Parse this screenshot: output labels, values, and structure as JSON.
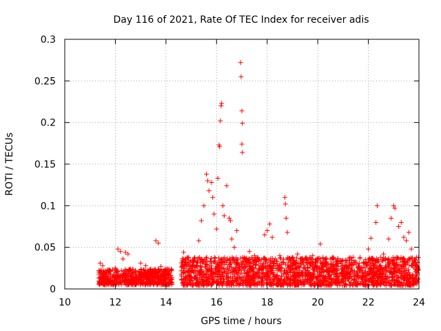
{
  "chart_data": {
    "type": "scatter",
    "title": "Day 116 of 2021, Rate Of TEC Index for receiver adis",
    "xlabel": "GPS time / hours",
    "ylabel": "ROTI / TECUs",
    "xlim": [
      10,
      24
    ],
    "ylim": [
      0,
      0.3
    ],
    "x_ticks": [
      10,
      12,
      14,
      16,
      18,
      20,
      22,
      24
    ],
    "x_tick_labels": [
      "10",
      "12",
      "14",
      "16",
      "18",
      "20",
      "22",
      "24"
    ],
    "y_ticks": [
      0,
      0.05,
      0.1,
      0.15,
      0.2,
      0.25,
      0.3
    ],
    "y_tick_labels": [
      "0",
      "0.05",
      "0.1",
      "0.15",
      "0.2",
      "0.25",
      "0.3"
    ],
    "grid": true,
    "marker": "+",
    "marker_color": "#ff0000",
    "series": [
      {
        "name": "ROTI",
        "points": [
          [
            11.4,
            0.031
          ],
          [
            11.5,
            0.028
          ],
          [
            11.6,
            0.022
          ],
          [
            11.8,
            0.018
          ],
          [
            12.0,
            0.025
          ],
          [
            12.1,
            0.048
          ],
          [
            12.2,
            0.045
          ],
          [
            12.3,
            0.036
          ],
          [
            12.4,
            0.044
          ],
          [
            12.5,
            0.042
          ],
          [
            12.6,
            0.024
          ],
          [
            12.8,
            0.022
          ],
          [
            13.0,
            0.031
          ],
          [
            13.2,
            0.028
          ],
          [
            13.4,
            0.024
          ],
          [
            13.6,
            0.058
          ],
          [
            13.7,
            0.055
          ],
          [
            13.8,
            0.027
          ],
          [
            14.0,
            0.024
          ],
          [
            14.2,
            0.022
          ],
          [
            14.7,
            0.044
          ],
          [
            14.9,
            0.038
          ],
          [
            15.1,
            0.035
          ],
          [
            15.3,
            0.058
          ],
          [
            15.4,
            0.082
          ],
          [
            15.5,
            0.1
          ],
          [
            15.6,
            0.138
          ],
          [
            15.65,
            0.13
          ],
          [
            15.7,
            0.118
          ],
          [
            15.8,
            0.128
          ],
          [
            15.85,
            0.11
          ],
          [
            15.9,
            0.09
          ],
          [
            16.0,
            0.072
          ],
          [
            16.05,
            0.133
          ],
          [
            16.1,
            0.173
          ],
          [
            16.12,
            0.171
          ],
          [
            16.15,
            0.202
          ],
          [
            16.18,
            0.22
          ],
          [
            16.2,
            0.223
          ],
          [
            16.25,
            0.1
          ],
          [
            16.3,
            0.088
          ],
          [
            16.4,
            0.124
          ],
          [
            16.5,
            0.085
          ],
          [
            16.55,
            0.082
          ],
          [
            16.6,
            0.06
          ],
          [
            16.7,
            0.05
          ],
          [
            16.8,
            0.07
          ],
          [
            16.95,
            0.272
          ],
          [
            16.97,
            0.255
          ],
          [
            17.0,
            0.214
          ],
          [
            17.02,
            0.199
          ],
          [
            17.0,
            0.174
          ],
          [
            17.02,
            0.164
          ],
          [
            17.3,
            0.045
          ],
          [
            17.5,
            0.04
          ],
          [
            17.7,
            0.035
          ],
          [
            17.9,
            0.065
          ],
          [
            18.0,
            0.07
          ],
          [
            18.1,
            0.078
          ],
          [
            18.2,
            0.062
          ],
          [
            18.5,
            0.04
          ],
          [
            18.7,
            0.11
          ],
          [
            18.72,
            0.102
          ],
          [
            18.75,
            0.085
          ],
          [
            18.8,
            0.068
          ],
          [
            19.0,
            0.038
          ],
          [
            19.2,
            0.042
          ],
          [
            19.5,
            0.035
          ],
          [
            19.8,
            0.04
          ],
          [
            20.1,
            0.054
          ],
          [
            20.3,
            0.032
          ],
          [
            20.6,
            0.038
          ],
          [
            21.0,
            0.034
          ],
          [
            21.4,
            0.038
          ],
          [
            21.8,
            0.032
          ],
          [
            22.0,
            0.048
          ],
          [
            22.1,
            0.061
          ],
          [
            22.3,
            0.08
          ],
          [
            22.35,
            0.1
          ],
          [
            22.6,
            0.042
          ],
          [
            22.8,
            0.06
          ],
          [
            22.9,
            0.085
          ],
          [
            23.0,
            0.1
          ],
          [
            23.05,
            0.097
          ],
          [
            23.2,
            0.075
          ],
          [
            23.3,
            0.08
          ],
          [
            23.4,
            0.062
          ],
          [
            23.5,
            0.058
          ],
          [
            23.6,
            0.068
          ],
          [
            23.7,
            0.048
          ],
          [
            23.9,
            0.038
          ],
          [
            23.95,
            0.032
          ]
        ]
      }
    ],
    "dense_bands": [
      {
        "x_start": 11.35,
        "x_end": 14.25,
        "y_low": 0.005,
        "y_high": 0.024
      },
      {
        "x_start": 14.6,
        "x_end": 23.98,
        "y_low": 0.004,
        "y_high": 0.038
      }
    ]
  }
}
